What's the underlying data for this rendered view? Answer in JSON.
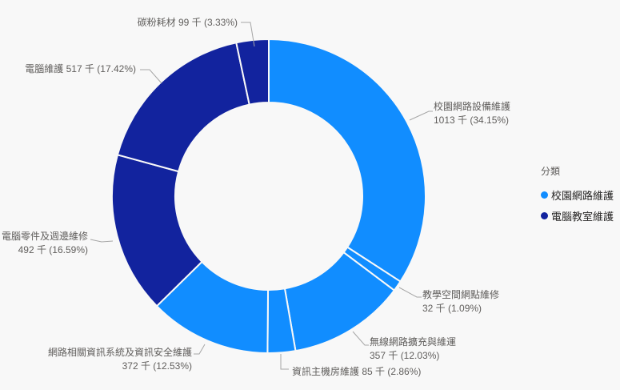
{
  "page": {
    "background": "#F8F8F8"
  },
  "chart_data": {
    "type": "pie",
    "subtype": "donut",
    "title": "",
    "unit_suffix": "千",
    "colors": {
      "campus_group": "#118DFF",
      "classroom_group": "#12239E"
    },
    "legend": {
      "title": "分類",
      "position": "right",
      "items": [
        {
          "label": "校園網路維護",
          "color": "#118DFF"
        },
        {
          "label": "電腦教室維護",
          "color": "#12239E"
        }
      ]
    },
    "slices": [
      {
        "name": "校園網路設備維護",
        "value": 1013,
        "percent": 34.15,
        "group": "校園網路維護",
        "color": "#118DFF",
        "label_lines": [
          "校園網路設備維護",
          "1013 千 (34.15%)"
        ]
      },
      {
        "name": "教學空間網點維修",
        "value": 32,
        "percent": 1.09,
        "group": "校園網路維護",
        "color": "#118DFF",
        "label_lines": [
          "教學空間網點維修",
          "32 千 (1.09%)"
        ]
      },
      {
        "name": "無線網路擴充與維運",
        "value": 357,
        "percent": 12.03,
        "group": "校園網路維護",
        "color": "#118DFF",
        "label_lines": [
          "無線網路擴充與維運",
          "357 千 (12.03%)"
        ]
      },
      {
        "name": "資訊主機房維護",
        "value": 85,
        "percent": 2.86,
        "group": "校園網路維護",
        "color": "#118DFF",
        "label_lines": [
          "資訊主機房維護 85 千 (2.86%)"
        ]
      },
      {
        "name": "網路相關資訊系統及資訊安全維護",
        "value": 372,
        "percent": 12.53,
        "group": "校園網路維護",
        "color": "#118DFF",
        "label_lines": [
          "網路相關資訊系統及資訊安全維護",
          "372 千 (12.53%)"
        ]
      },
      {
        "name": "電腦零件及週邊維修",
        "value": 492,
        "percent": 16.59,
        "group": "電腦教室維護",
        "color": "#12239E",
        "label_lines": [
          "電腦零件及週邊維修",
          "492 千 (16.59%)"
        ]
      },
      {
        "name": "電腦維護",
        "value": 517,
        "percent": 17.42,
        "group": "電腦教室維護",
        "color": "#12239E",
        "label_lines": [
          "電腦維護 517 千 (17.42%)"
        ]
      },
      {
        "name": "碳粉耗材",
        "value": 99,
        "percent": 3.33,
        "group": "電腦教室維護",
        "color": "#12239E",
        "label_lines": [
          "碳粉耗材 99 千 (3.33%)"
        ]
      }
    ],
    "geometry_note": "clockwise from 12 o'clock, starting with 校園網路設備維護"
  }
}
